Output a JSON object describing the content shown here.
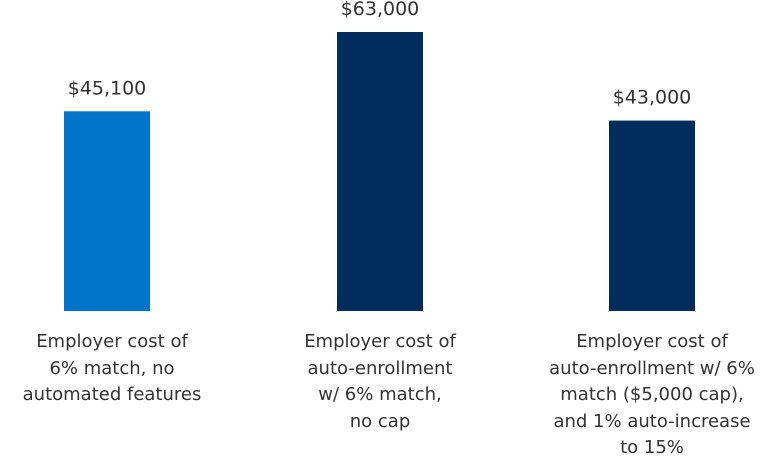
{
  "chart_data": {
    "type": "bar",
    "categories": [
      "Employer cost of\n6% match, no\nautomated features",
      "Employer cost of\nauto-enrollment\nw/ 6% match,\nno cap",
      "Employer cost of\nauto-enrollment w/ 6%\nmatch ($5,000 cap),\nand 1% auto-increase\nto 15%"
    ],
    "values": [
      45100,
      63000,
      43000
    ],
    "value_labels": [
      "$45,100",
      "$63,000",
      "$43,000"
    ],
    "colors": [
      "#0074c8",
      "#002d5b",
      "#002d5b"
    ]
  }
}
